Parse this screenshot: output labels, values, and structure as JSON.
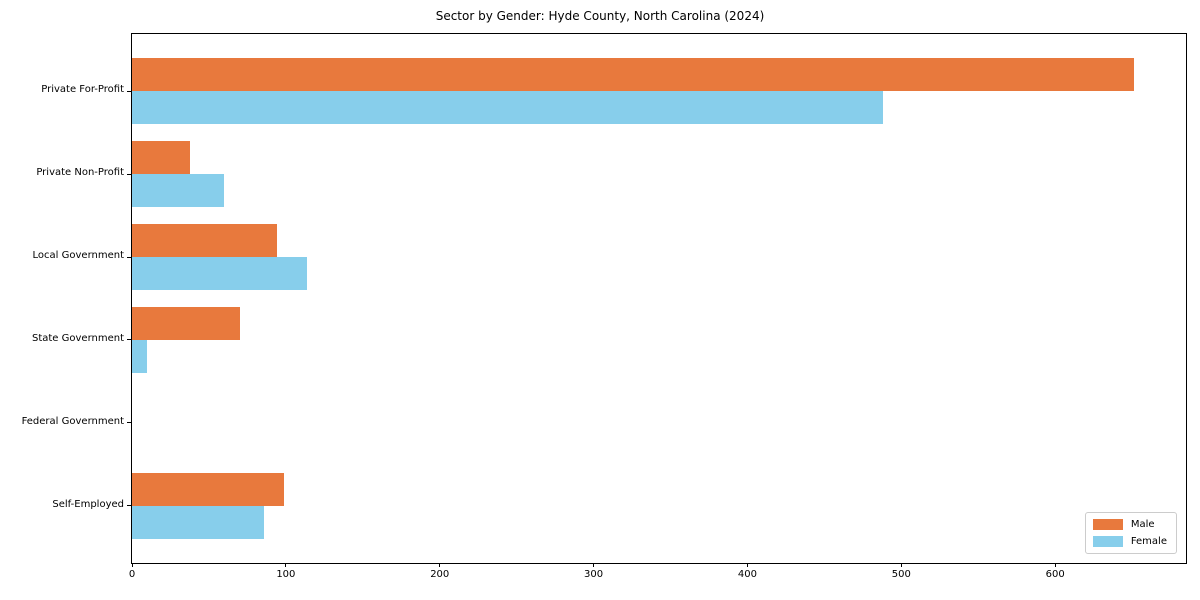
{
  "chart_data": {
    "type": "bar",
    "orientation": "horizontal",
    "title": "Sector by Gender: Hyde County, North Carolina (2024)",
    "categories": [
      "Private For-Profit",
      "Private Non-Profit",
      "Local Government",
      "State Government",
      "Federal Government",
      "Self-Employed"
    ],
    "series": [
      {
        "name": "Male",
        "color": "#e8793d",
        "values": [
          651,
          38,
          94,
          70,
          0,
          99
        ]
      },
      {
        "name": "Female",
        "color": "#87ceeb",
        "values": [
          488,
          60,
          114,
          10,
          0,
          86
        ]
      }
    ],
    "xlabel": "",
    "ylabel": "",
    "xlim": [
      0,
      685
    ],
    "xticks": [
      0,
      100,
      200,
      300,
      400,
      500,
      600
    ],
    "grid": false,
    "legend": {
      "position": "lower right"
    }
  }
}
